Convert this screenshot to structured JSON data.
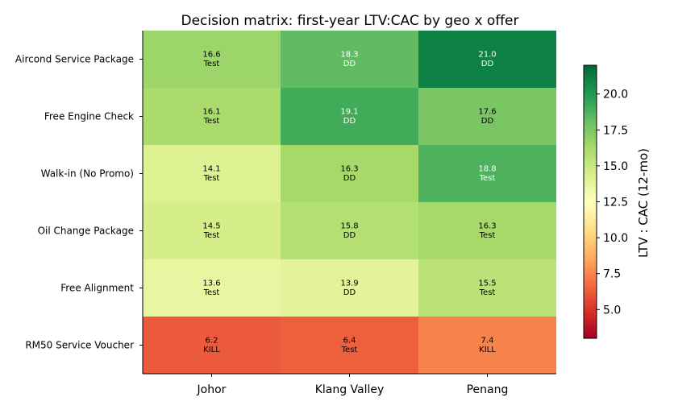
{
  "chart_data": {
    "type": "heatmap",
    "title": "Decision matrix: first-year LTV:CAC by geo x offer",
    "columns": [
      "Johor",
      "Klang Valley",
      "Penang"
    ],
    "rows": [
      "Aircond Service Package",
      "Free Engine Check",
      "Walk-in (No Promo)",
      "Oil Change Package",
      "Free Alignment",
      "RM50 Service Voucher"
    ],
    "values": [
      [
        16.6,
        18.3,
        21.0
      ],
      [
        16.1,
        19.1,
        17.6
      ],
      [
        14.1,
        16.3,
        18.8
      ],
      [
        14.5,
        15.8,
        16.3
      ],
      [
        13.6,
        13.9,
        15.5
      ],
      [
        6.2,
        6.4,
        7.4
      ]
    ],
    "decisions": [
      [
        "Test",
        "DD",
        "DD"
      ],
      [
        "Test",
        "DD",
        "DD"
      ],
      [
        "Test",
        "DD",
        "Test"
      ],
      [
        "Test",
        "DD",
        "Test"
      ],
      [
        "Test",
        "DD",
        "Test"
      ],
      [
        "KILL",
        "Test",
        "KILL"
      ]
    ],
    "colorbar": {
      "label": "LTV : CAC (12-mo)",
      "range": [
        3,
        22
      ],
      "ticks": [
        5.0,
        7.5,
        10.0,
        12.5,
        15.0,
        17.5,
        20.0
      ],
      "tick_labels": [
        "5.0",
        "7.5",
        "10.0",
        "12.5",
        "15.0",
        "17.5",
        "20.0"
      ],
      "colormap": "RdYlGn"
    }
  }
}
